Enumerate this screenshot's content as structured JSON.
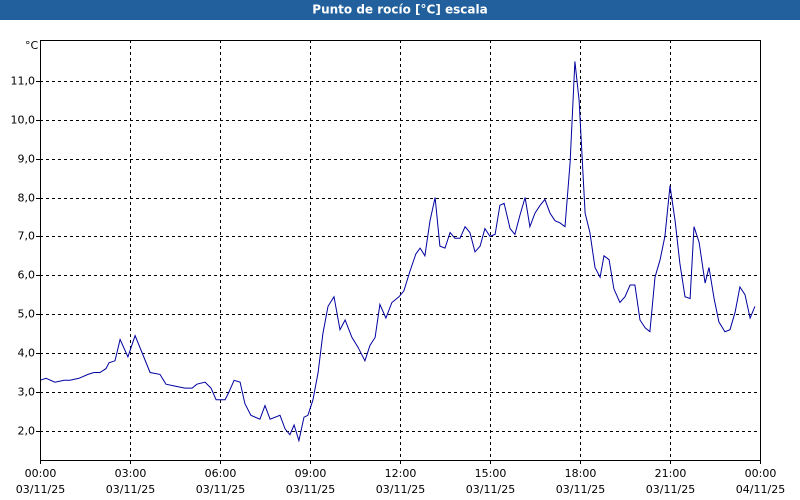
{
  "chart_data": {
    "type": "line",
    "title": "Punto de rocío [°C] escala",
    "ylabel": "°C",
    "x": [
      0,
      0.2,
      0.5,
      0.8,
      1.0,
      1.3,
      1.6,
      1.8,
      2.0,
      2.2,
      2.3,
      2.5,
      2.67,
      2.93,
      3.17,
      3.67,
      4.0,
      4.2,
      4.5,
      4.83,
      5.07,
      5.23,
      5.5,
      5.7,
      5.87,
      6.17,
      6.3,
      6.47,
      6.67,
      6.83,
      7.03,
      7.33,
      7.5,
      7.67,
      8.0,
      8.17,
      8.33,
      8.47,
      8.63,
      8.8,
      8.93,
      9.1,
      9.27,
      9.43,
      9.6,
      9.8,
      10.0,
      10.17,
      10.4,
      10.6,
      10.83,
      11.0,
      11.17,
      11.33,
      11.53,
      11.73,
      11.97,
      12.13,
      12.33,
      12.53,
      12.67,
      12.83,
      13.0,
      13.17,
      13.33,
      13.5,
      13.67,
      13.83,
      14.0,
      14.17,
      14.33,
      14.5,
      14.67,
      14.83,
      15.0,
      15.17,
      15.33,
      15.47,
      15.67,
      15.83,
      16.0,
      16.17,
      16.33,
      16.5,
      16.67,
      16.83,
      17.0,
      17.17,
      17.33,
      17.5,
      17.67,
      17.83,
      17.97,
      18.17,
      18.33,
      18.5,
      18.67,
      18.8,
      18.97,
      19.13,
      19.33,
      19.5,
      19.67,
      19.83,
      20.0,
      20.17,
      20.33,
      20.5,
      20.67,
      20.83,
      21.0,
      21.17,
      21.33,
      21.5,
      21.67,
      21.8,
      21.97,
      22.17,
      22.3,
      22.47,
      22.63,
      22.83,
      23.0,
      23.17,
      23.33,
      23.5,
      23.67,
      23.83
    ],
    "series": [
      {
        "color": "#0000a0",
        "values": [
          3.3,
          3.35,
          3.25,
          3.3,
          3.3,
          3.35,
          3.45,
          3.5,
          3.5,
          3.6,
          3.75,
          3.8,
          4.35,
          3.9,
          4.45,
          3.5,
          3.45,
          3.2,
          3.15,
          3.1,
          3.1,
          3.2,
          3.25,
          3.1,
          2.8,
          2.8,
          3.0,
          3.3,
          3.25,
          2.7,
          2.4,
          2.3,
          2.65,
          2.3,
          2.4,
          2.05,
          1.9,
          2.15,
          1.75,
          2.35,
          2.4,
          2.8,
          3.5,
          4.5,
          5.2,
          5.45,
          4.6,
          4.85,
          4.4,
          4.15,
          3.8,
          4.2,
          4.4,
          5.25,
          4.9,
          5.3,
          5.45,
          5.6,
          6.1,
          6.55,
          6.7,
          6.5,
          7.4,
          8.0,
          6.75,
          6.7,
          7.1,
          6.95,
          6.95,
          7.25,
          7.1,
          6.6,
          6.75,
          7.2,
          7.0,
          7.05,
          7.8,
          7.85,
          7.2,
          7.05,
          7.55,
          8.0,
          7.25,
          7.6,
          7.8,
          7.95,
          7.6,
          7.4,
          7.35,
          7.25,
          8.9,
          11.5,
          10.5,
          7.6,
          7.1,
          6.2,
          5.95,
          6.5,
          6.4,
          5.65,
          5.3,
          5.45,
          5.75,
          5.75,
          4.85,
          4.65,
          4.55,
          5.95,
          6.4,
          7.0,
          8.3,
          7.4,
          6.3,
          5.45,
          5.4,
          7.25,
          6.85,
          5.8,
          6.2,
          5.4,
          4.8,
          4.55,
          4.6,
          5.05,
          5.7,
          5.5,
          4.9,
          5.2
        ]
      }
    ],
    "xlim": [
      0,
      24
    ],
    "xticks": [
      {
        "value": 0,
        "label": "00:00"
      },
      {
        "value": 3,
        "label": "03:00"
      },
      {
        "value": 6,
        "label": "06:00"
      },
      {
        "value": 9,
        "label": "09:00"
      },
      {
        "value": 12,
        "label": "12:00"
      },
      {
        "value": 15,
        "label": "15:00"
      },
      {
        "value": 18,
        "label": "18:00"
      },
      {
        "value": 21,
        "label": "21:00"
      },
      {
        "value": 24,
        "label": "00:00"
      }
    ],
    "xtick_dates": [
      "03/11/25",
      "03/11/25",
      "03/11/25",
      "03/11/25",
      "03/11/25",
      "03/11/25",
      "03/11/25",
      "03/11/25",
      "04/11/25"
    ],
    "ylim": [
      1.25,
      12.05
    ],
    "yticks": [
      {
        "value": 2,
        "label": "2,0"
      },
      {
        "value": 3,
        "label": "3,0"
      },
      {
        "value": 4,
        "label": "4,0"
      },
      {
        "value": 5,
        "label": "5,0"
      },
      {
        "value": 6,
        "label": "6,0"
      },
      {
        "value": 7,
        "label": "7,0"
      },
      {
        "value": 8,
        "label": "8,0"
      },
      {
        "value": 9,
        "label": "9,0"
      },
      {
        "value": 10,
        "label": "10,0"
      },
      {
        "value": 11,
        "label": "11,0"
      }
    ],
    "grid": true
  }
}
